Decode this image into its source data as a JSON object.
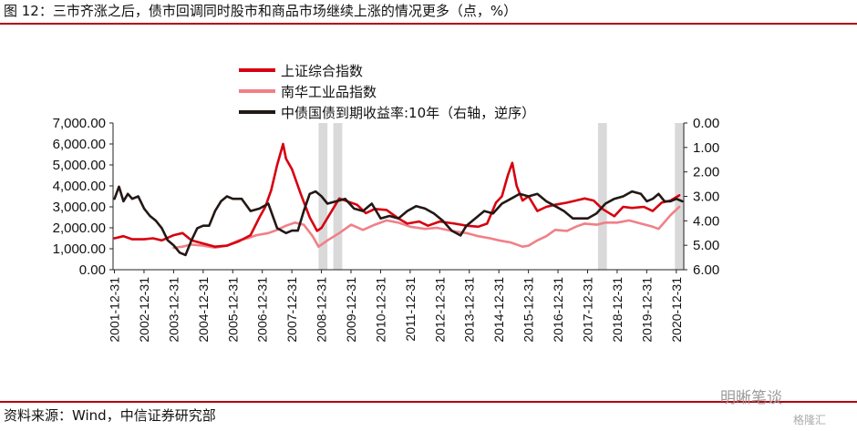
{
  "title": "图 12：三市齐涨之后，债市回调同时股市和商品市场继续上涨的情况更多（点，%）",
  "source": "资料来源：Wind，中信证券研究部",
  "watermark": "明晰笔谈",
  "watermark_sub": "格隆汇",
  "chart_data": {
    "type": "line",
    "y_left": {
      "ticks": [
        "0.00",
        "1,000.00",
        "2,000.00",
        "3,000.00",
        "4,000.00",
        "5,000.00",
        "6,000.00",
        "7,000.00"
      ],
      "ylim": [
        0,
        7000
      ]
    },
    "y_right": {
      "ticks": [
        "0.00",
        "1.00",
        "2.00",
        "3.00",
        "4.00",
        "5.00",
        "6.00"
      ],
      "ylim": [
        0,
        6
      ],
      "inverted": true
    },
    "x_ticks": [
      "2001-12-31",
      "2002-12-31",
      "2003-12-31",
      "2004-12-31",
      "2005-12-31",
      "2006-12-31",
      "2007-12-31",
      "2008-12-31",
      "2009-12-31",
      "2010-12-31",
      "2011-12-31",
      "2012-12-31",
      "2013-12-31",
      "2014-12-31",
      "2015-12-31",
      "2016-12-31",
      "2017-12-31",
      "2018-12-31",
      "2019-12-31",
      "2020-12-31"
    ],
    "xlim": [
      2001.95,
      2021.25
    ],
    "shaded_periods": [
      [
        2008.9,
        2009.2
      ],
      [
        2009.4,
        2009.7
      ],
      [
        2018.35,
        2018.65
      ],
      [
        2020.95,
        2021.25
      ]
    ],
    "series": [
      {
        "name": "上证综合指数",
        "axis": "left",
        "color": "#d7000f",
        "x": [
          2002.0,
          2002.3,
          2002.6,
          2003.0,
          2003.3,
          2003.6,
          2004.0,
          2004.3,
          2004.6,
          2005.0,
          2005.4,
          2005.8,
          2006.2,
          2006.6,
          2006.9,
          2007.1,
          2007.3,
          2007.5,
          2007.7,
          2007.8,
          2008.0,
          2008.3,
          2008.6,
          2008.85,
          2009.0,
          2009.3,
          2009.6,
          2009.9,
          2010.2,
          2010.5,
          2010.8,
          2011.2,
          2011.6,
          2011.9,
          2012.3,
          2012.6,
          2013.0,
          2013.5,
          2013.9,
          2014.3,
          2014.6,
          2014.9,
          2015.1,
          2015.3,
          2015.45,
          2015.6,
          2015.8,
          2016.0,
          2016.3,
          2016.6,
          2016.9,
          2017.3,
          2017.6,
          2017.9,
          2018.2,
          2018.5,
          2018.9,
          2019.2,
          2019.5,
          2019.9,
          2020.2,
          2020.5,
          2020.8,
          2021.1
        ],
        "values": [
          1500,
          1600,
          1450,
          1450,
          1500,
          1400,
          1650,
          1750,
          1400,
          1250,
          1100,
          1150,
          1350,
          1650,
          2500,
          3000,
          3800,
          5000,
          6000,
          5300,
          4800,
          3600,
          2500,
          1850,
          2000,
          2700,
          3400,
          3250,
          3100,
          2700,
          2900,
          2850,
          2450,
          2200,
          2300,
          2100,
          2300,
          2200,
          2100,
          2050,
          2200,
          3200,
          3500,
          4500,
          5100,
          4000,
          3300,
          3500,
          2800,
          3000,
          3100,
          3200,
          3300,
          3400,
          3300,
          2900,
          2550,
          3000,
          2950,
          3000,
          2800,
          3200,
          3300,
          3550
        ]
      },
      {
        "name": "南华工业品指数",
        "axis": "left",
        "color": "#f08088",
        "x": [
          2004.0,
          2004.3,
          2004.6,
          2005.0,
          2005.4,
          2005.8,
          2006.2,
          2006.5,
          2006.8,
          2007.2,
          2007.5,
          2007.8,
          2008.1,
          2008.4,
          2008.7,
          2008.9,
          2009.2,
          2009.6,
          2010.0,
          2010.4,
          2010.8,
          2011.2,
          2011.6,
          2012.0,
          2012.5,
          2012.9,
          2013.4,
          2013.9,
          2014.3,
          2014.7,
          2015.0,
          2015.4,
          2015.8,
          2016.0,
          2016.3,
          2016.6,
          2016.9,
          2017.3,
          2017.6,
          2017.9,
          2018.3,
          2018.6,
          2019.0,
          2019.4,
          2019.8,
          2020.2,
          2020.4,
          2020.8,
          2021.1
        ],
        "values": [
          1050,
          1100,
          1200,
          1150,
          1050,
          1150,
          1400,
          1500,
          1650,
          1750,
          1900,
          2100,
          2250,
          2150,
          1600,
          1100,
          1400,
          1750,
          2150,
          1900,
          2150,
          2350,
          2250,
          2050,
          1950,
          2000,
          1850,
          1750,
          1600,
          1500,
          1400,
          1300,
          1100,
          1150,
          1400,
          1600,
          1900,
          1850,
          2050,
          2200,
          2150,
          2250,
          2250,
          2350,
          2200,
          2050,
          1950,
          2600,
          3000
        ]
      },
      {
        "name": "中债国债到期收益率:10年（右轴，逆序）",
        "axis": "right",
        "color": "#231815",
        "x": [
          2002.0,
          2002.15,
          2002.3,
          2002.45,
          2002.6,
          2002.8,
          2003.0,
          2003.2,
          2003.4,
          2003.6,
          2003.8,
          2004.0,
          2004.2,
          2004.4,
          2004.6,
          2004.8,
          2005.0,
          2005.2,
          2005.4,
          2005.6,
          2005.8,
          2006.0,
          2006.3,
          2006.6,
          2006.9,
          2007.2,
          2007.5,
          2007.8,
          2008.0,
          2008.2,
          2008.4,
          2008.6,
          2008.8,
          2009.0,
          2009.2,
          2009.5,
          2009.8,
          2010.1,
          2010.4,
          2010.7,
          2011.0,
          2011.3,
          2011.6,
          2011.9,
          2012.2,
          2012.5,
          2012.8,
          2013.1,
          2013.4,
          2013.7,
          2013.9,
          2014.2,
          2014.5,
          2014.8,
          2015.1,
          2015.4,
          2015.7,
          2016.0,
          2016.3,
          2016.6,
          2016.9,
          2017.2,
          2017.5,
          2017.8,
          2018.0,
          2018.3,
          2018.6,
          2018.9,
          2019.2,
          2019.5,
          2019.8,
          2020.0,
          2020.2,
          2020.4,
          2020.6,
          2020.8,
          2021.0,
          2021.2
        ],
        "values": [
          3.1,
          2.6,
          3.2,
          2.9,
          3.1,
          3.0,
          3.5,
          3.8,
          4.0,
          4.3,
          4.8,
          5.0,
          5.3,
          5.4,
          4.8,
          4.3,
          4.2,
          4.2,
          3.6,
          3.2,
          3.0,
          3.1,
          3.1,
          3.6,
          3.5,
          3.3,
          4.3,
          4.5,
          4.4,
          4.4,
          3.6,
          2.9,
          2.8,
          3.0,
          3.3,
          3.2,
          3.1,
          3.5,
          3.6,
          3.3,
          3.9,
          3.8,
          3.9,
          3.6,
          3.4,
          3.5,
          3.7,
          4.0,
          4.4,
          4.6,
          4.2,
          3.9,
          3.6,
          3.7,
          3.3,
          3.1,
          2.9,
          3.0,
          2.9,
          3.2,
          3.4,
          3.6,
          3.9,
          3.9,
          3.9,
          3.7,
          3.3,
          3.1,
          3.0,
          2.8,
          2.9,
          3.2,
          3.1,
          2.9,
          3.2,
          3.2,
          3.1,
          3.2
        ]
      }
    ]
  }
}
